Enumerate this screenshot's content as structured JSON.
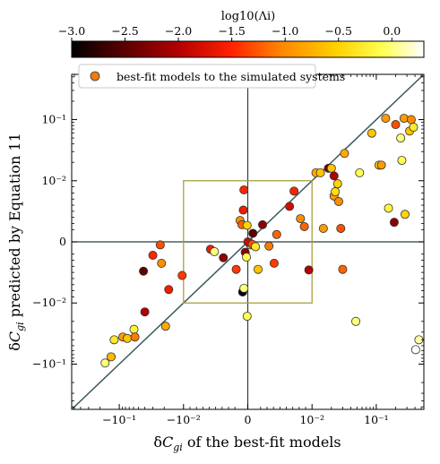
{
  "chart_data": {
    "type": "scatter",
    "xlabel": "δC_gi of the best-fit models",
    "ylabel": "δC_gi predicted by Equation 11",
    "colorbar": {
      "label": "log10(Λi)",
      "ticks": [
        -3.0,
        -2.5,
        -2.0,
        -1.5,
        -1.0,
        -0.5,
        0.0
      ],
      "tick_labels": [
        "−3.0",
        "−2.5",
        "−2.0",
        "−1.5",
        "−1.0",
        "−0.5",
        "0.0"
      ],
      "range": [
        -3.0,
        0.3
      ],
      "colormap": "hot"
    },
    "scale": "symlog",
    "linthresh": 0.01,
    "xlim": [
      -0.55,
      0.55
    ],
    "ylim": [
      -0.55,
      0.55
    ],
    "xticks": [
      -0.1,
      -0.01,
      0,
      0.01,
      0.1
    ],
    "xtick_labels": [
      "−10⁻¹",
      "−10⁻²",
      "0",
      "10⁻²",
      "10⁻¹"
    ],
    "yticks": [
      -0.1,
      -0.01,
      0,
      0.01,
      0.1
    ],
    "ytick_labels": [
      "−10⁻¹",
      "−10⁻²",
      "0",
      "10⁻²",
      "10⁻¹"
    ],
    "legend": {
      "label": "best-fit models to the simulated systems",
      "position": "top-left"
    },
    "reference_line": "y = x",
    "box": {
      "x": [
        -0.01,
        0.01
      ],
      "y": [
        -0.01,
        0.01
      ]
    },
    "points": [
      {
        "x": -0.166,
        "y": -0.096,
        "c": 0.0
      },
      {
        "x": -0.134,
        "y": -0.076,
        "c": -0.7
      },
      {
        "x": -0.12,
        "y": -0.04,
        "c": -0.3
      },
      {
        "x": -0.088,
        "y": -0.036,
        "c": -0.9
      },
      {
        "x": -0.075,
        "y": -0.038,
        "c": -0.6
      },
      {
        "x": -0.059,
        "y": -0.027,
        "c": -0.2
      },
      {
        "x": -0.057,
        "y": -0.036,
        "c": -1.1
      },
      {
        "x": -0.04,
        "y": -0.014,
        "c": -2.0
      },
      {
        "x": -0.042,
        "y": -0.0048,
        "c": -2.5
      },
      {
        "x": -0.03,
        "y": -0.0022,
        "c": -1.5
      },
      {
        "x": -0.023,
        "y": -0.0005,
        "c": -1.3
      },
      {
        "x": -0.022,
        "y": -0.0035,
        "c": -1.0
      },
      {
        "x": -0.019,
        "y": -0.024,
        "c": -0.8
      },
      {
        "x": -0.017,
        "y": -0.0078,
        "c": -1.6
      },
      {
        "x": -0.0105,
        "y": -0.0055,
        "c": -1.4
      },
      {
        "x": -0.0058,
        "y": -0.0012,
        "c": -1.6
      },
      {
        "x": -0.0052,
        "y": -0.0016,
        "c": 0.0
      },
      {
        "x": -0.0038,
        "y": -0.0026,
        "c": -2.2
      },
      {
        "x": -0.0012,
        "y": 0.0035,
        "c": -1.0
      },
      {
        "x": -0.0009,
        "y": 0.0028,
        "c": -1.2
      },
      {
        "x": -0.0007,
        "y": 0.0052,
        "c": -1.6
      },
      {
        "x": -0.0006,
        "y": 0.0085,
        "c": -1.5
      },
      {
        "x": -0.0018,
        "y": -0.0045,
        "c": -1.4
      },
      {
        "x": -0.0004,
        "y": -0.0017,
        "c": -2.2
      },
      {
        "x": -0.0008,
        "y": -0.0082,
        "c": -3.0
      },
      {
        "x": -0.0006,
        "y": -0.0076,
        "c": 0.0
      },
      {
        "x": -0.0002,
        "y": -0.0025,
        "c": -0.1
      },
      {
        "x": -0.0001,
        "y": -0.0165,
        "c": -0.1
      },
      {
        "x": 0.0004,
        "y": -0.0005,
        "c": -0.3
      },
      {
        "x": -0.0001,
        "y": 0.0027,
        "c": -0.5
      },
      {
        "x": 0.0,
        "y": 0.0,
        "c": -1.6
      },
      {
        "x": 0.0002,
        "y": -0.0001,
        "c": -1.8
      },
      {
        "x": 0.0007,
        "y": -0.0004,
        "c": -1.3
      },
      {
        "x": 0.0008,
        "y": 0.0014,
        "c": -2.5
      },
      {
        "x": 0.0012,
        "y": -0.0008,
        "c": -0.3
      },
      {
        "x": 0.0016,
        "y": -0.0045,
        "c": -0.6
      },
      {
        "x": 0.0023,
        "y": 0.0028,
        "c": -2.2
      },
      {
        "x": 0.0033,
        "y": -0.0007,
        "c": -1.1
      },
      {
        "x": 0.0041,
        "y": -0.0035,
        "c": -1.4
      },
      {
        "x": 0.0045,
        "y": 0.0012,
        "c": -1.2
      },
      {
        "x": 0.0065,
        "y": 0.0058,
        "c": -1.8
      },
      {
        "x": 0.0072,
        "y": 0.0083,
        "c": -1.5
      },
      {
        "x": 0.0082,
        "y": 0.0038,
        "c": -1.0
      },
      {
        "x": 0.0088,
        "y": 0.0025,
        "c": -1.2
      },
      {
        "x": 0.0095,
        "y": -0.0046,
        "c": -2.0
      },
      {
        "x": 0.0115,
        "y": 0.0135,
        "c": -0.8
      },
      {
        "x": 0.0135,
        "y": 0.0135,
        "c": -0.6
      },
      {
        "x": 0.015,
        "y": 0.0022,
        "c": -0.9
      },
      {
        "x": 0.018,
        "y": 0.016,
        "c": -2.3
      },
      {
        "x": 0.02,
        "y": 0.016,
        "c": -0.6
      },
      {
        "x": 0.022,
        "y": 0.012,
        "c": -2.0
      },
      {
        "x": 0.022,
        "y": 0.0075,
        "c": -0.9
      },
      {
        "x": 0.023,
        "y": 0.0082,
        "c": -0.4
      },
      {
        "x": 0.025,
        "y": 0.0095,
        "c": -0.5
      },
      {
        "x": 0.026,
        "y": 0.0066,
        "c": -1.0
      },
      {
        "x": 0.028,
        "y": 0.0022,
        "c": -1.3
      },
      {
        "x": 0.03,
        "y": -0.0045,
        "c": -1.2
      },
      {
        "x": 0.032,
        "y": 0.028,
        "c": -0.8
      },
      {
        "x": 0.055,
        "y": 0.0135,
        "c": -0.1
      },
      {
        "x": 0.048,
        "y": -0.02,
        "c": 0.0
      },
      {
        "x": 0.085,
        "y": 0.06,
        "c": -0.6
      },
      {
        "x": 0.11,
        "y": 0.018,
        "c": -0.5
      },
      {
        "x": 0.12,
        "y": 0.018,
        "c": -0.9
      },
      {
        "x": 0.14,
        "y": 0.105,
        "c": -0.9
      },
      {
        "x": 0.155,
        "y": 0.0055,
        "c": -0.2
      },
      {
        "x": 0.19,
        "y": 0.0032,
        "c": -2.2
      },
      {
        "x": 0.2,
        "y": 0.083,
        "c": -1.3
      },
      {
        "x": 0.24,
        "y": 0.05,
        "c": 0.0
      },
      {
        "x": 0.27,
        "y": 0.105,
        "c": -0.9
      },
      {
        "x": 0.25,
        "y": 0.0215,
        "c": -0.1
      },
      {
        "x": 0.28,
        "y": 0.0045,
        "c": -0.5
      },
      {
        "x": 0.33,
        "y": 0.065,
        "c": -0.6
      },
      {
        "x": 0.35,
        "y": 0.1,
        "c": -1.0
      },
      {
        "x": 0.38,
        "y": 0.075,
        "c": -0.3
      },
      {
        "x": 0.41,
        "y": -0.058,
        "c": 0.4
      },
      {
        "x": 0.46,
        "y": -0.04,
        "c": 0.1
      }
    ]
  }
}
